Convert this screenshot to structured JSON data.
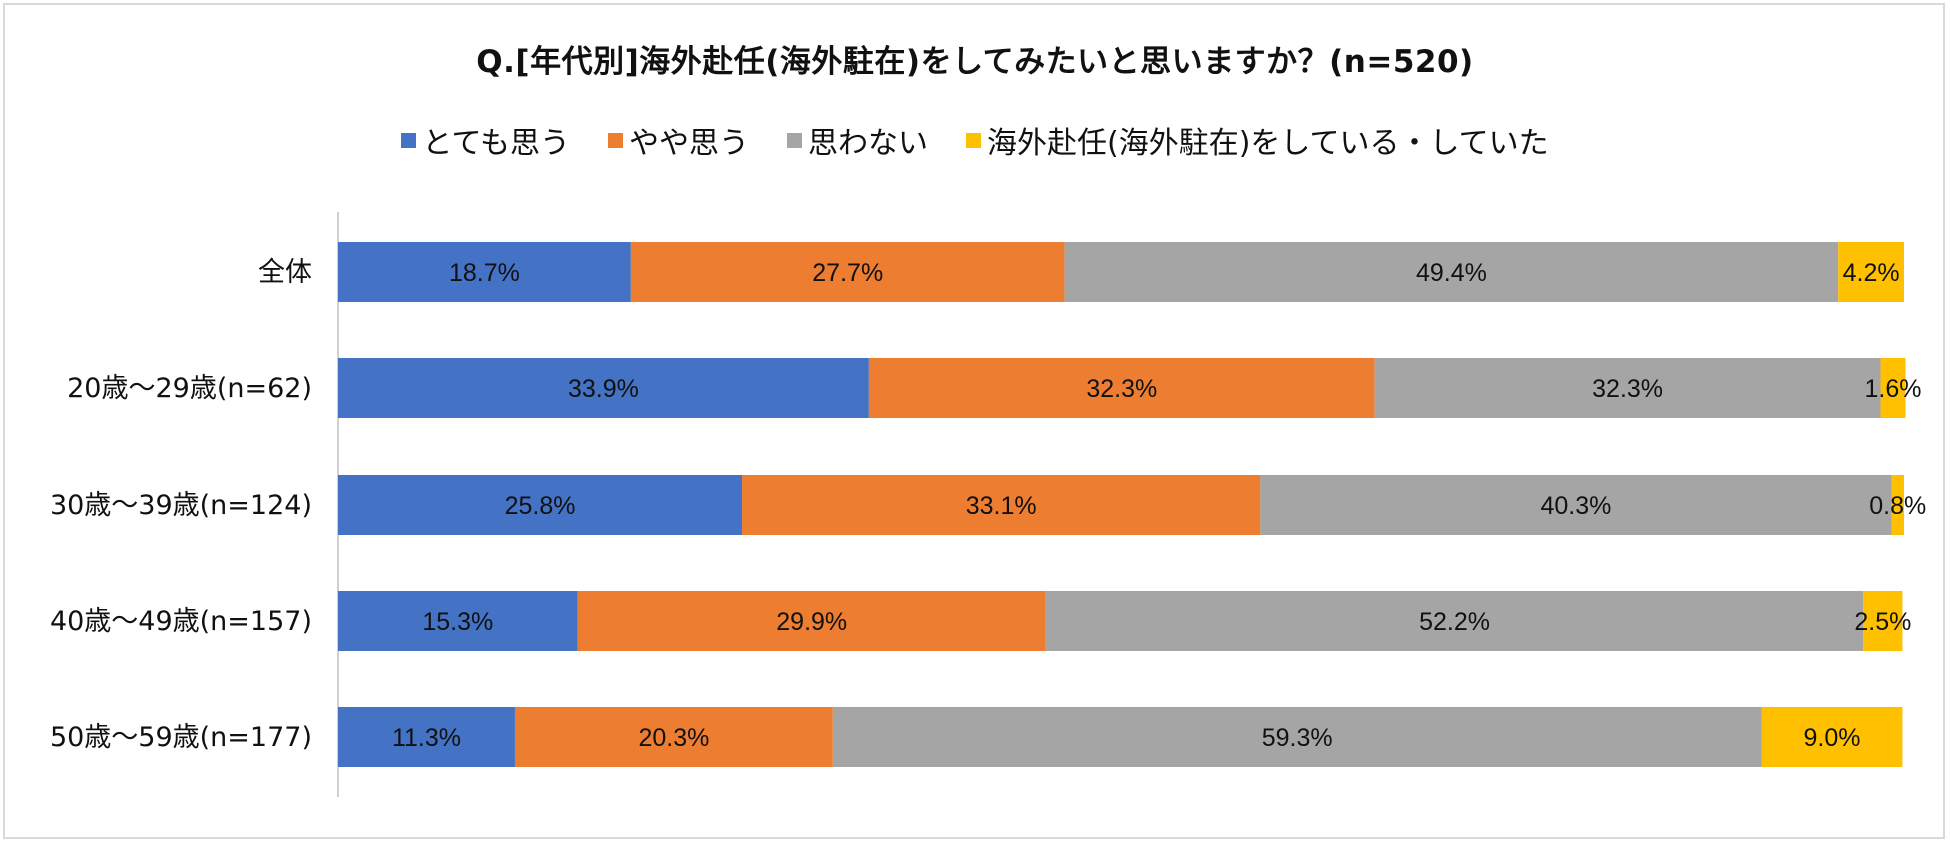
{
  "chart_data": {
    "type": "bar",
    "orientation": "horizontal",
    "stacked": true,
    "title": "Q.[年代別]海外赴任(海外駐在)をしてみたいと思いますか？(n=520)",
    "categories": [
      "全体",
      "20歳～29歳(n=62)",
      "30歳～39歳(n=124)",
      "40歳～49歳(n=157)",
      "50歳～59歳(n=177)"
    ],
    "series": [
      {
        "name": "とても思う",
        "color": "#4472C4",
        "values": [
          18.7,
          33.9,
          25.8,
          15.3,
          11.3
        ],
        "labels": [
          "18.7%",
          "33.9%",
          "25.8%",
          "15.3%",
          "11.3%"
        ]
      },
      {
        "name": "やや思う",
        "color": "#ED7D31",
        "values": [
          27.7,
          32.3,
          33.1,
          29.9,
          20.3
        ],
        "labels": [
          "27.7%",
          "32.3%",
          "33.1%",
          "29.9%",
          "20.3%"
        ]
      },
      {
        "name": "思わない",
        "color": "#A5A5A5",
        "values": [
          49.4,
          32.3,
          40.3,
          52.2,
          59.3
        ],
        "labels": [
          "49.4%",
          "32.3%",
          "40.3%",
          "52.2%",
          "59.3%"
        ]
      },
      {
        "name": "海外赴任(海外駐在)をしている・していた",
        "color": "#FFC000",
        "values": [
          4.2,
          1.6,
          0.8,
          2.5,
          9.0
        ],
        "labels": [
          "4.2%",
          "1.6%",
          "0.8%",
          "2.5%",
          "9.0%"
        ]
      }
    ],
    "xlim": [
      0,
      100
    ],
    "legend_position": "top",
    "grid": false
  }
}
